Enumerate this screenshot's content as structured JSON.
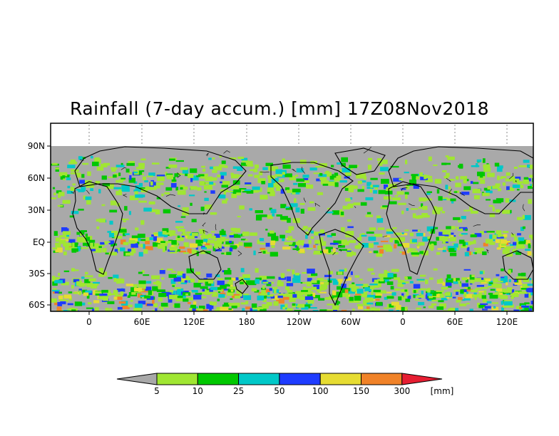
{
  "title": "Rainfall (7-day accum.) [mm] 17Z08Nov2018",
  "map": {
    "lat_labels": [
      "90N",
      "60N",
      "30N",
      "EQ",
      "30S",
      "60S"
    ],
    "lon_labels": [
      "0",
      "60E",
      "120E",
      "180",
      "120W",
      "60W",
      "0",
      "60E",
      "120E"
    ],
    "background_color": "#a9a9a9"
  },
  "colorbar": {
    "unit": "[mm]",
    "thresholds": [
      "5",
      "10",
      "25",
      "50",
      "100",
      "150",
      "300"
    ],
    "colors": [
      "#a8a8a8",
      "#a0e632",
      "#00c800",
      "#00c8c8",
      "#1e3cff",
      "#e6dc32",
      "#f08228",
      "#e61e32"
    ]
  }
}
